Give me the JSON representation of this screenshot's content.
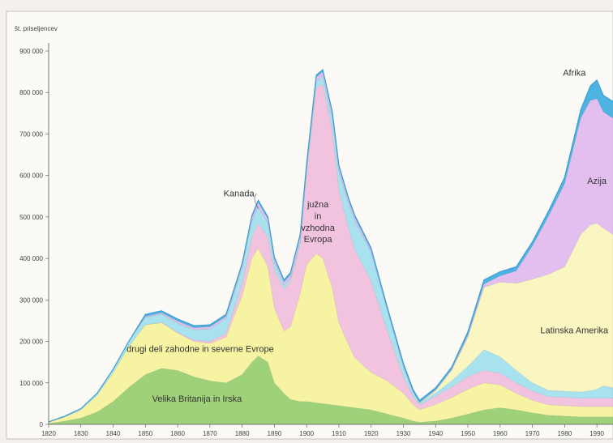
{
  "chart_data": {
    "type": "area",
    "ylabel": "št. priseljencev",
    "x": [
      1820,
      1825,
      1830,
      1835,
      1840,
      1845,
      1850,
      1855,
      1860,
      1865,
      1870,
      1875,
      1880,
      1883,
      1885,
      1888,
      1890,
      1893,
      1895,
      1898,
      1900,
      1903,
      1905,
      1908,
      1910,
      1913,
      1915,
      1920,
      1925,
      1930,
      1933,
      1935,
      1940,
      1945,
      1950,
      1955,
      1960,
      1965,
      1970,
      1975,
      1980,
      1985,
      1988,
      1990,
      1992,
      1995
    ],
    "xlim": [
      1820,
      1995
    ],
    "ylim": [
      0,
      900000
    ],
    "xticks": [
      "1820",
      "1830",
      "1840",
      "1850",
      "1860",
      "1870",
      "1880",
      "1890",
      "1900",
      "1910",
      "1920",
      "1930",
      "1940",
      "1950",
      "1960",
      "1970",
      "1980",
      "1990"
    ],
    "yticks": [
      "0",
      "100 000",
      "200 000",
      "300 000",
      "400 000",
      "500 000",
      "600 000",
      "700 000",
      "800 000",
      "900 000"
    ],
    "series": [
      {
        "name": "Velika Britanija in Irska",
        "color": "#9fd17a",
        "values": [
          2000,
          8000,
          15000,
          30000,
          55000,
          90000,
          120000,
          135000,
          130000,
          115000,
          105000,
          100000,
          120000,
          150000,
          165000,
          150000,
          100000,
          75000,
          60000,
          55000,
          55000,
          52000,
          50000,
          47000,
          45000,
          42000,
          40000,
          35000,
          25000,
          15000,
          8000,
          5000,
          8000,
          15000,
          25000,
          35000,
          40000,
          35000,
          28000,
          22000,
          20000,
          18000,
          18000,
          18000,
          18000,
          18000
        ]
      },
      {
        "name": "drugi deli zahodne in severne Evrope",
        "color": "#f6f4a2",
        "values": [
          3000,
          10000,
          20000,
          40000,
          70000,
          100000,
          120000,
          110000,
          90000,
          85000,
          90000,
          110000,
          190000,
          250000,
          260000,
          230000,
          180000,
          150000,
          175000,
          260000,
          330000,
          360000,
          350000,
          280000,
          200000,
          150000,
          120000,
          90000,
          80000,
          60000,
          40000,
          30000,
          40000,
          50000,
          60000,
          65000,
          55000,
          40000,
          30000,
          25000,
          25000,
          25000,
          25000,
          25000,
          25000,
          25000
        ]
      },
      {
        "name": "južna in vzhodna Evropa",
        "color": "#f2c3df",
        "values": [
          0,
          0,
          0,
          0,
          0,
          0,
          0,
          1000,
          2000,
          3000,
          5000,
          10000,
          30000,
          50000,
          60000,
          70000,
          90000,
          100000,
          110000,
          120000,
          220000,
          400000,
          420000,
          380000,
          320000,
          280000,
          260000,
          220000,
          120000,
          40000,
          20000,
          12000,
          20000,
          25000,
          30000,
          30000,
          28000,
          25000,
          22000,
          20000,
          20000,
          20000,
          20000,
          20000,
          20000,
          20000
        ]
      },
      {
        "name": "Kanada",
        "color": "#a8e2ef",
        "values": [
          1000,
          2000,
          3000,
          5000,
          8000,
          12000,
          18000,
          20000,
          22000,
          25000,
          30000,
          35000,
          38000,
          40000,
          40000,
          35000,
          20000,
          10000,
          8000,
          10000,
          12000,
          15000,
          20000,
          30000,
          45000,
          60000,
          70000,
          70000,
          50000,
          25000,
          10000,
          5000,
          8000,
          15000,
          25000,
          50000,
          40000,
          30000,
          20000,
          15000,
          15000,
          15000,
          18000,
          22000,
          30000,
          25000
        ]
      },
      {
        "name": "Latinska Amerika",
        "color": "#f9f6c2",
        "values": [
          0,
          0,
          0,
          0,
          0,
          0,
          0,
          0,
          0,
          0,
          0,
          0,
          0,
          0,
          0,
          0,
          0,
          0,
          0,
          0,
          0,
          0,
          0,
          0,
          0,
          0,
          0,
          0,
          0,
          0,
          0,
          0,
          5000,
          25000,
          70000,
          150000,
          180000,
          210000,
          250000,
          280000,
          300000,
          380000,
          400000,
          400000,
          380000,
          370000
        ]
      },
      {
        "name": "Azija",
        "color": "#e2bfee",
        "values": [
          0,
          0,
          0,
          0,
          0,
          0,
          2000,
          3000,
          5000,
          5000,
          5000,
          5000,
          5000,
          8000,
          10000,
          10000,
          8000,
          8000,
          8000,
          8000,
          8000,
          10000,
          10000,
          10000,
          10000,
          8000,
          8000,
          5000,
          3000,
          2000,
          1000,
          1000,
          2000,
          3000,
          5000,
          8000,
          15000,
          30000,
          80000,
          140000,
          200000,
          280000,
          300000,
          300000,
          280000,
          280000
        ]
      },
      {
        "name": "Afrika",
        "color": "#4fb3e2",
        "values": [
          0,
          0,
          0,
          0,
          0,
          0,
          5000,
          5000,
          5000,
          5000,
          5000,
          5000,
          5000,
          5000,
          5000,
          5000,
          5000,
          5000,
          5000,
          5000,
          5000,
          5000,
          5000,
          5000,
          5000,
          5000,
          5000,
          5000,
          5000,
          5000,
          5000,
          5000,
          5000,
          5000,
          8000,
          10000,
          10000,
          10000,
          10000,
          12000,
          15000,
          20000,
          35000,
          45000,
          40000,
          40000
        ]
      }
    ],
    "annotations": [
      {
        "text": "Kanada",
        "x": 1879,
        "y": 550000
      },
      {
        "text": "južna",
        "x": 1903.5,
        "y": 523000
      },
      {
        "text": "in",
        "x": 1903.5,
        "y": 495000
      },
      {
        "text": "vzhodna",
        "x": 1903.5,
        "y": 467000
      },
      {
        "text": "Evropa",
        "x": 1903.5,
        "y": 439000
      },
      {
        "text": "drugi deli zahodne in severne Evrope",
        "x": 1867,
        "y": 175000
      },
      {
        "text": "Velika Britanija in Irska",
        "x": 1866,
        "y": 55000
      },
      {
        "text": "Latinska Amerika",
        "x": 1983,
        "y": 220000
      },
      {
        "text": "Azija",
        "x": 1990,
        "y": 580000
      },
      {
        "text": "Afrika",
        "x": 1983,
        "y": 840000
      }
    ],
    "grid": false,
    "legend": "none"
  }
}
